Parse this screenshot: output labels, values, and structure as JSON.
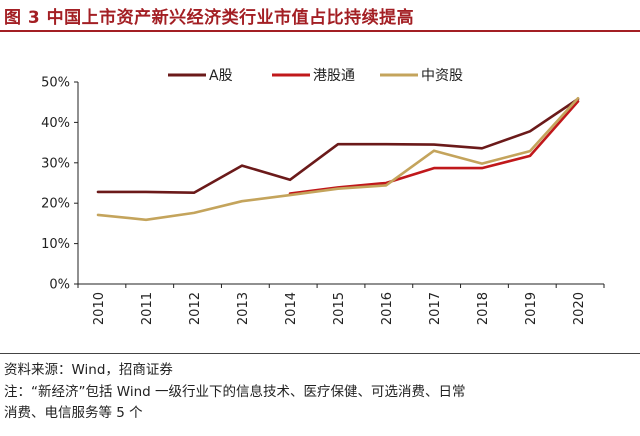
{
  "header": {
    "title": "图 3  中国上市资产新兴经济类行业市值占比持续提高"
  },
  "chart_data": {
    "type": "line",
    "title": "图 3  中国上市资产新兴经济类行业市值占比持续提高",
    "categories": [
      "2010",
      "2011",
      "2012",
      "2013",
      "2014",
      "2015",
      "2016",
      "2017",
      "2018",
      "2019",
      "2020"
    ],
    "ylim": [
      0,
      50
    ],
    "yticks": [
      "0%",
      "10%",
      "20%",
      "30%",
      "40%",
      "50%"
    ],
    "xlabel": "",
    "ylabel": "",
    "legend_position": "top",
    "series": [
      {
        "name": "A股",
        "color": "#6b1a1a",
        "values": [
          22.8,
          22.8,
          22.6,
          29.3,
          25.8,
          34.6,
          34.6,
          34.5,
          33.6,
          37.8,
          45.8
        ]
      },
      {
        "name": "港股通",
        "color": "#c0181b",
        "values": [
          null,
          null,
          null,
          null,
          22.4,
          23.9,
          25.0,
          28.7,
          28.7,
          31.7,
          45.2
        ]
      },
      {
        "name": "中资股",
        "color": "#c4a45c",
        "values": [
          17.1,
          15.9,
          17.6,
          20.5,
          22.0,
          23.6,
          24.4,
          33.0,
          29.8,
          32.9,
          46.0
        ]
      }
    ]
  },
  "notes": {
    "source": "资料来源：Wind，招商证券",
    "note_line1": "注：“新经济”包括 Wind 一级行业下的信息技术、医疗保健、可选消费、日常",
    "note_line2": "消费、电信服务等 5 个"
  }
}
